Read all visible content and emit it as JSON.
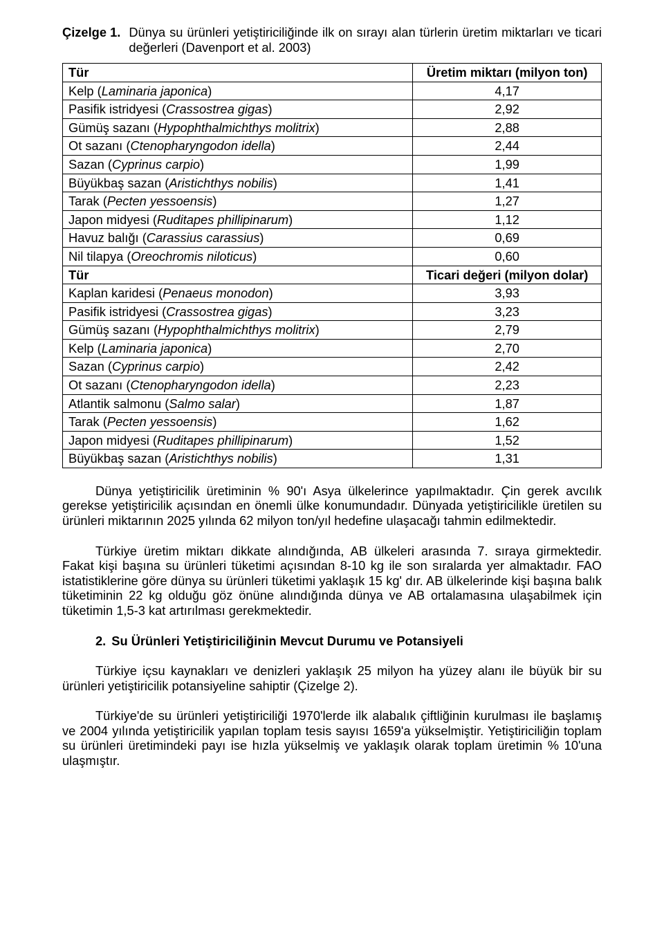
{
  "caption": {
    "label": "Çizelge 1.",
    "text": "Dünya su ürünleri yetiştiriciliğinde ilk on sırayı alan türlerin üretim miktarları ve ticari değerleri (Davenport et al. 2003)"
  },
  "table": {
    "header1": {
      "c1": "Tür",
      "c2": "Üretim miktarı (milyon ton)"
    },
    "rowsA": [
      {
        "pre": "Kelp (",
        "it": "Laminaria japonica",
        "post": ")",
        "v": "4,17"
      },
      {
        "pre": "Pasifik istridyesi (",
        "it": "Crassostrea gigas",
        "post": ")",
        "v": "2,92"
      },
      {
        "pre": "Gümüş sazanı (",
        "it": "Hypophthalmichthys molitrix",
        "post": ")",
        "v": "2,88"
      },
      {
        "pre": "Ot sazanı (",
        "it": "Ctenopharyngodon idella",
        "post": ")",
        "v": "2,44"
      },
      {
        "pre": "Sazan (",
        "it": "Cyprinus carpio",
        "post": ")",
        "v": "1,99"
      },
      {
        "pre": "Büyükbaş sazan (",
        "it": "Aristichthys nobilis",
        "post": ")",
        "v": "1,41"
      },
      {
        "pre": "Tarak (",
        "it": "Pecten yessoensis",
        "post": ")",
        "v": "1,27"
      },
      {
        "pre": "Japon midyesi (",
        "it": "Ruditapes phillipinarum",
        "post": ")",
        "v": "1,12"
      },
      {
        "pre": "Havuz balığı (",
        "it": "Carassius carassius",
        "post": ")",
        "v": "0,69"
      },
      {
        "pre": "Nil tilapya (",
        "it": "Oreochromis niloticus",
        "post": ")",
        "v": "0,60"
      }
    ],
    "header2": {
      "c1": "Tür",
      "c2": "Ticari değeri (milyon dolar)"
    },
    "rowsB": [
      {
        "pre": "Kaplan karidesi (",
        "it": "Penaeus monodon",
        "post": ")",
        "v": "3,93"
      },
      {
        "pre": "Pasifik istridyesi (",
        "it": "Crassostrea gigas",
        "post": ")",
        "v": "3,23"
      },
      {
        "pre": "Gümüş sazanı (",
        "it": "Hypophthalmichthys molitrix",
        "post": ")",
        "v": "2,79"
      },
      {
        "pre": "Kelp (",
        "it": "Laminaria japonica",
        "post": ")",
        "v": "2,70"
      },
      {
        "pre": "Sazan (",
        "it": "Cyprinus carpio",
        "post": ")",
        "v": "2,42"
      },
      {
        "pre": "Ot sazanı (",
        "it": "Ctenopharyngodon idella",
        "post": ")",
        "v": "2,23"
      },
      {
        "pre": "Atlantik salmonu (",
        "it": "Salmo salar",
        "post": ")",
        "v": "1,87"
      },
      {
        "pre": "Tarak (",
        "it": "Pecten yessoensis",
        "post": ")",
        "v": "1,62"
      },
      {
        "pre": "Japon midyesi (",
        "it": "Ruditapes phillipinarum",
        "post": ")",
        "v": "1,52"
      },
      {
        "pre": "Büyükbaş sazan (",
        "it": "Aristichthys nobilis",
        "post": ")",
        "v": "1,31"
      }
    ]
  },
  "p1": "Dünya yetiştiricilik üretiminin % 90'ı Asya ülkelerince yapılmaktadır. Çin gerek avcılık gerekse yetiştiricilik açısından en önemli ülke konumundadır. Dünyada yetiştiricilikle üretilen su ürünleri miktarının 2025 yılında 62 milyon ton/yıl hedefine ulaşacağı tahmin edilmektedir.",
  "p2": "Türkiye üretim miktarı dikkate alındığında, AB ülkeleri arasında 7. sıraya girmektedir. Fakat kişi başına su ürünleri tüketimi açısından 8-10 kg ile son sıralarda yer almaktadır. FAO istatistiklerine göre dünya su ürünleri tüketimi yaklaşık 15 kg' dır. AB ülkelerinde kişi başına balık tüketiminin 22 kg olduğu göz önüne alındığında dünya ve AB ortalamasına ulaşabilmek için tüketimin 1,5-3 kat artırılması gerekmektedir.",
  "section": {
    "num": "2.",
    "title": "Su Ürünleri Yetiştiriciliğinin Mevcut Durumu ve Potansiyeli"
  },
  "p3": "Türkiye içsu kaynakları ve denizleri yaklaşık 25 milyon ha yüzey alanı ile büyük bir su ürünleri yetiştiricilik potansiyeline sahiptir (Çizelge 2).",
  "p4": "Türkiye'de su ürünleri yetiştiriciliği 1970'lerde ilk alabalık çiftliğinin kurulması ile başlamış ve 2004 yılında yetiştiricilik yapılan toplam tesis sayısı 1659'a yükselmiştir. Yetiştiriciliğin toplam su ürünleri üretimindeki payı ise hızla yükselmiş ve yaklaşık olarak toplam üretimin % 10'una ulaşmıştır."
}
